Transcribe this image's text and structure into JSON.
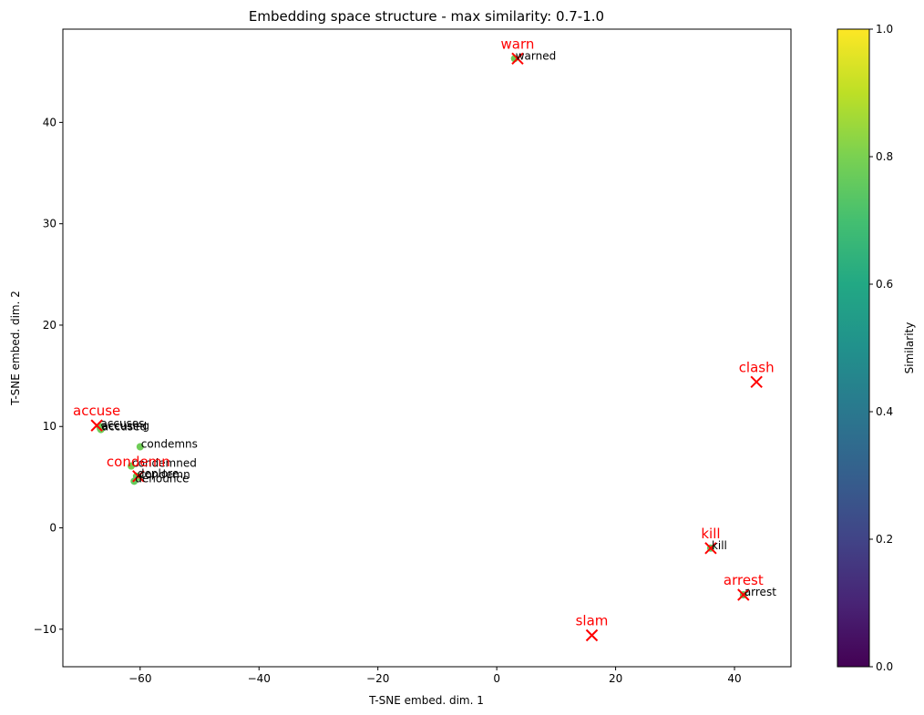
{
  "chart_data": {
    "type": "scatter",
    "title": "Embedding space structure - max similarity: 0.7-1.0",
    "xlabel": "T-SNE embed. dim. 1",
    "ylabel": "T-SNE embed. dim. 2",
    "xlim": [
      -73,
      49.5
    ],
    "ylim": [
      -13.7,
      49.2
    ],
    "xticks": [
      -60,
      -40,
      -20,
      0,
      20,
      40
    ],
    "yticks": [
      -10,
      0,
      10,
      20,
      30,
      40
    ],
    "xtick_labels": [
      "−60",
      "−40",
      "−20",
      "0",
      "20",
      "40"
    ],
    "ytick_labels": [
      "−10",
      "0",
      "10",
      "20",
      "30",
      "40"
    ],
    "grid": false,
    "colormap": "viridis",
    "anchors": [
      {
        "label": "warn",
        "x": 3.5,
        "y": 46.3
      },
      {
        "label": "accuse",
        "x": -67.3,
        "y": 10.1
      },
      {
        "label": "condemn",
        "x": -60.3,
        "y": 5.1
      },
      {
        "label": "clash",
        "x": 43.7,
        "y": 14.4
      },
      {
        "label": "kill",
        "x": 36.0,
        "y": -2.0
      },
      {
        "label": "arrest",
        "x": 41.5,
        "y": -6.6
      },
      {
        "label": "slam",
        "x": 16.0,
        "y": -10.6
      }
    ],
    "neighbors": [
      {
        "label": "warned",
        "x": 3.0,
        "y": 46.3,
        "similarity": 0.78
      },
      {
        "label": "accuses",
        "x": -66.8,
        "y": 10.0,
        "similarity": 0.76
      },
      {
        "label": "accusing",
        "x": -66.7,
        "y": 9.8,
        "similarity": 0.77
      },
      {
        "label": "accused",
        "x": -66.6,
        "y": 9.7,
        "similarity": 0.78
      },
      {
        "label": "condemns",
        "x": -60.0,
        "y": 8.0,
        "similarity": 0.78
      },
      {
        "label": "condemned",
        "x": -61.5,
        "y": 6.1,
        "similarity": 0.79
      },
      {
        "label": "deplore",
        "x": -60.6,
        "y": 5.1,
        "similarity": 0.76
      },
      {
        "label": "condemn",
        "x": -60.3,
        "y": 5.0,
        "similarity": 0.77
      },
      {
        "label": "denounce",
        "x": -61.0,
        "y": 4.6,
        "similarity": 0.76
      },
      {
        "label": "kill",
        "x": 36.0,
        "y": -2.0,
        "similarity": 0.75
      },
      {
        "label": "arrest",
        "x": 41.5,
        "y": -6.6,
        "similarity": 0.75
      }
    ],
    "colorbar": {
      "label": "Similarity",
      "range": [
        0,
        1
      ],
      "ticks": [
        0.0,
        0.2,
        0.4,
        0.6,
        0.8,
        1.0
      ],
      "tick_labels": [
        "0.0",
        "0.2",
        "0.4",
        "0.6",
        "0.8",
        "1.0"
      ]
    },
    "colors": {
      "anchor_marker": "#ff0000",
      "anchor_label": "#ff0000",
      "neighbor_label": "#000000"
    }
  }
}
